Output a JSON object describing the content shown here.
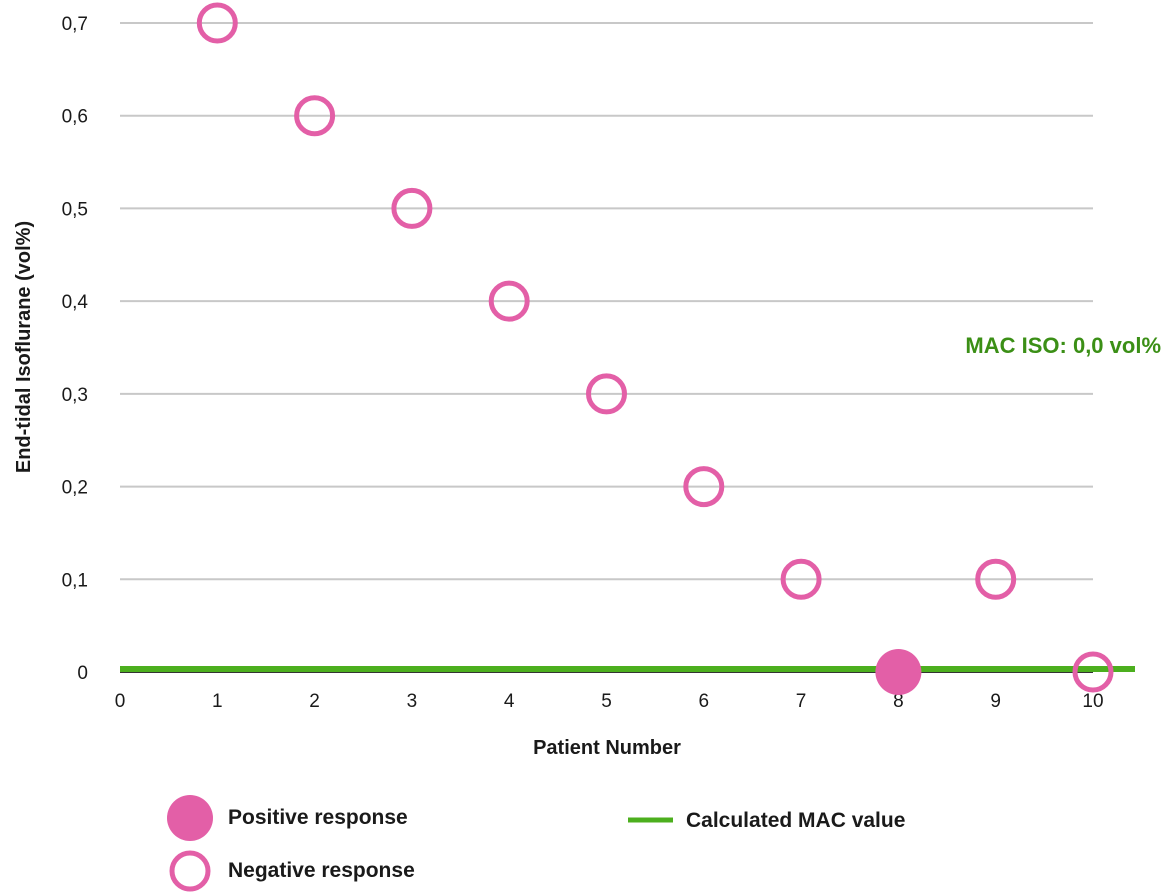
{
  "chart_data": {
    "type": "scatter",
    "xlabel": "Patient Number",
    "ylabel": "End-tidal Isoflurane (vol%)",
    "xlim": [
      0,
      10
    ],
    "ylim": [
      0,
      0.7
    ],
    "x_ticks": [
      "0",
      "1",
      "2",
      "3",
      "4",
      "5",
      "6",
      "7",
      "8",
      "9",
      "10"
    ],
    "y_ticks": [
      "0",
      "0,1",
      "0,2",
      "0,3",
      "0,4",
      "0,5",
      "0,6",
      "0,7"
    ],
    "grid": "horizontal",
    "series": [
      {
        "name": "Negative response",
        "marker": "open-circle",
        "color": "#e35fa7",
        "points": [
          {
            "x": 1,
            "y": 0.7
          },
          {
            "x": 2,
            "y": 0.6
          },
          {
            "x": 3,
            "y": 0.5
          },
          {
            "x": 4,
            "y": 0.4
          },
          {
            "x": 5,
            "y": 0.3
          },
          {
            "x": 6,
            "y": 0.2
          },
          {
            "x": 7,
            "y": 0.1
          },
          {
            "x": 9,
            "y": 0.1
          },
          {
            "x": 10,
            "y": 0.0
          }
        ]
      },
      {
        "name": "Positive response",
        "marker": "filled-circle",
        "color": "#e35fa7",
        "points": [
          {
            "x": 8,
            "y": 0.0
          }
        ]
      }
    ],
    "reference_line": {
      "name": "Calculated MAC value",
      "y": 0.0,
      "color": "#4caf1e"
    },
    "annotation": {
      "text": "MAC ISO: 0,0 vol%",
      "color": "#3b8f16"
    }
  },
  "legend": {
    "position": "bottom",
    "items": [
      {
        "label": "Positive response",
        "marker": "filled-circle"
      },
      {
        "label": "Negative response",
        "marker": "open-circle"
      },
      {
        "label": "Calculated MAC value",
        "marker": "line"
      }
    ]
  }
}
